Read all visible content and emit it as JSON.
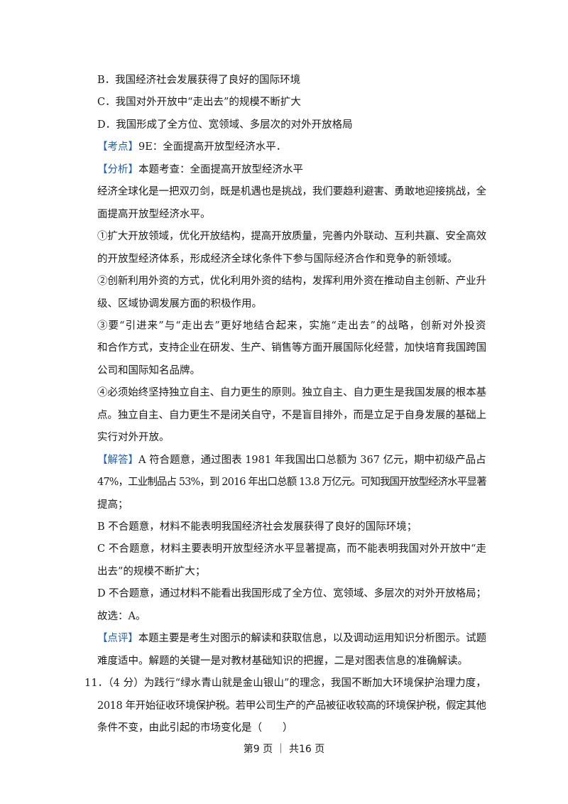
{
  "lines": [
    {
      "text": "B．我国经济社会发展获得了良好的国际环境"
    },
    {
      "text": "C．我国对外开放中“走出去”的规模不断扩大"
    },
    {
      "text": "D．我国形成了全方位、宽领域、多层次的对外开放格局"
    },
    {
      "tag": "【考点】",
      "text": "9E：全面提高开放型经济水平．"
    },
    {
      "tag": "【分析】",
      "text": "本题考查：全面提高开放型经济水平"
    },
    {
      "text": "经济全球化是一把双刃剑，既是机遇也是挑战，我们要趋利避害、勇敢地迎接挑战，全",
      "just": true
    },
    {
      "text": "面提高开放型经济水平。"
    },
    {
      "text": "①扩大开放领域，优化开放结构，提高开放质量，完善内外联动、互利共赢、安全高效",
      "just": true
    },
    {
      "text": "的开放型经济体系，形成经济全球化条件下参与国际经济合作和竞争的新领域。"
    },
    {
      "text": "②创新利用外资的方式，优化利用外资的结构，发挥利用外资在推动自主创新、产业升",
      "just": true
    },
    {
      "text": "级、区域协调发展方面的积极作用。"
    },
    {
      "text": "③要“引进来”与“走出去”更好地结合起来，实施“走出去”的战略，创新对外投资",
      "just": true
    },
    {
      "text": "和合作方式，支持企业在研发、生产、销售等方面开展国际化经营，加快培育我国跨国",
      "just": true
    },
    {
      "text": "公司和国际知名品牌。"
    },
    {
      "text": "④必须始终坚持独立自主、自力更生的原则。独立自主、自力更生是我国发展的根本基",
      "just": true
    },
    {
      "text": "点。独立自主、自力更生不是闭关自守，不是盲目排外，而是立足于自身发展的基础上",
      "just": true
    },
    {
      "text": "实行对外开放。"
    },
    {
      "tag": "【解答】",
      "text": "A 符合题意，通过图表 1981 年我国出口总额为 367 亿元，期中初级产品占",
      "just": true
    },
    {
      "text": "47%，工业制品占 53%，到 2016 年出口总额 13.8 万亿元。可知我国开放型经济水平显著",
      "just": true
    },
    {
      "text": "提高；"
    },
    {
      "text": "B 不合题意，材料不能表明我国经济社会发展获得了良好的国际环境；"
    },
    {
      "text": "C 不合题意，材料主要表明开放型经济水平显著提高，而不能表明我国对外开放中“走",
      "just": true
    },
    {
      "text": "出去”的规模不断扩大；"
    },
    {
      "text": "D 不合题意，通过材料不能看出我国形成了全方位、宽领域、多层次的对外开放格局；",
      "just": true
    },
    {
      "text": "故选：A。"
    },
    {
      "tag": "【点评】",
      "text": "本题主要是考生对图示的解读和获取信息，以及调动运用知识分析图示。试题",
      "just": true
    },
    {
      "text": "难度适中。解题的关键一是对教材基础知识的把握，二是对图表信息的准确解读。"
    },
    {
      "text": "11．（4 分）为践行“绿水青山就是金山银山”的理念，我国不断加大环境保护治理力度，",
      "just": true,
      "question": true
    },
    {
      "text": "2018 年开始征收环境保护税。若甲公司生产的产品被征收较高的环境保护税，假定其他",
      "just": true
    },
    {
      "text": "条件不变，由此引起的市场变化是（　　）"
    }
  ],
  "footer": "第9 页 ｜ 共16 页",
  "colors": {
    "tag": "#1f5fbf",
    "text": "#1a1a1a"
  }
}
